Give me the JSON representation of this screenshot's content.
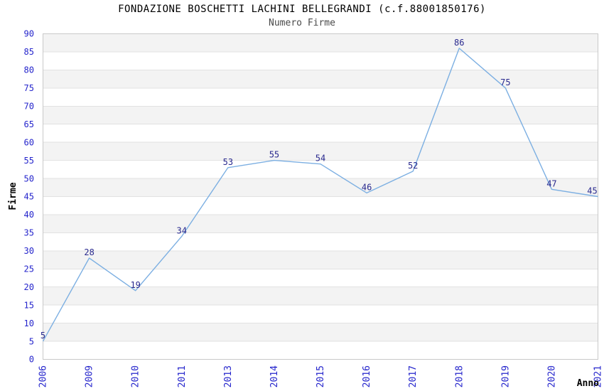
{
  "header": {
    "title": "FONDAZIONE BOSCHETTI LACHINI BELLEGRANDI (c.f.88001850176)",
    "subtitle": "Numero Firme"
  },
  "chart_data": {
    "type": "line",
    "title": "FONDAZIONE BOSCHETTI LACHINI BELLEGRANDI (c.f.88001850176)",
    "subtitle": "Numero Firme",
    "xlabel": "Anno",
    "ylabel": "Firme",
    "categories": [
      "2006",
      "2009",
      "2010",
      "2011",
      "2013",
      "2014",
      "2015",
      "2016",
      "2017",
      "2018",
      "2019",
      "2020",
      "2021"
    ],
    "values": [
      5,
      28,
      19,
      34,
      53,
      55,
      54,
      46,
      52,
      86,
      75,
      47,
      45
    ],
    "ylim": [
      0,
      90
    ],
    "ytick_step": 5,
    "grid": true,
    "banded_background": true,
    "legend_position": "none",
    "colors": {
      "line": "#7cafe2",
      "tick_labels": "#2525cc",
      "data_labels": "#29298e",
      "band_gray": "#f3f3f3",
      "band_white": "#ffffff",
      "gridline": "#e2e2e2",
      "plot_border": "#c9c9c9",
      "title": "#000000",
      "subtitle": "#4a4a4a",
      "axis_titles": "#000000"
    }
  }
}
